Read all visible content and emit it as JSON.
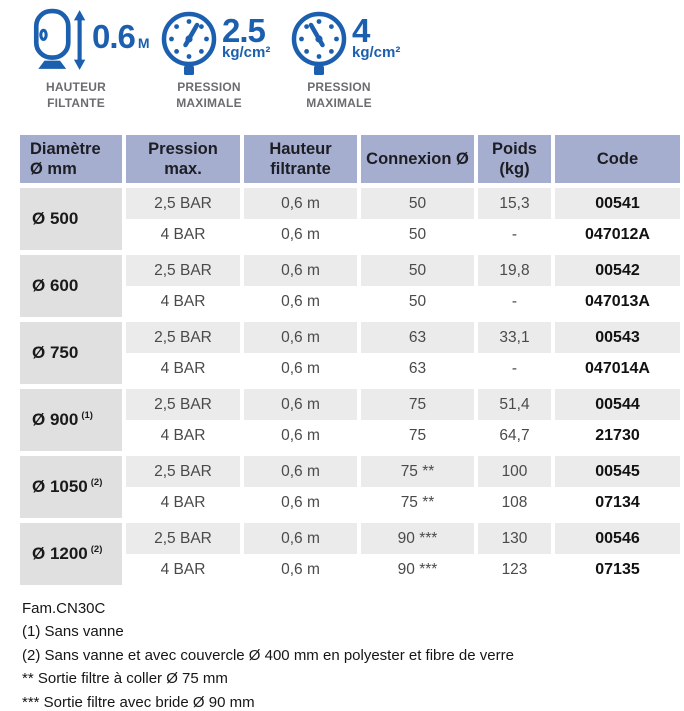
{
  "colors": {
    "accent_blue": "#1b5fae",
    "header_bg": "#a6aed0",
    "row_shade": "#ebebeb",
    "diameter_col_bg": "#e0e0e0",
    "label_gray": "#6b6c6f"
  },
  "icons": {
    "filter_height": {
      "value": "0.6",
      "unit": "M",
      "label": [
        "HAUTEUR",
        "FILTANTE"
      ]
    },
    "pressure_max_25": {
      "value": "2.5",
      "unit": "kg/cm²",
      "label": [
        "PRESSION",
        "MAXIMALE"
      ]
    },
    "pressure_max_4": {
      "value": "4",
      "unit": "kg/cm²",
      "label": [
        "PRESSION",
        "MAXIMALE"
      ]
    }
  },
  "table": {
    "headers": [
      [
        "Diamètre",
        "Ø mm"
      ],
      [
        "Pression",
        "max."
      ],
      [
        "Hauteur",
        "filtrante"
      ],
      [
        "Connexion Ø"
      ],
      [
        "Poids",
        "(kg)"
      ],
      [
        "Code"
      ]
    ],
    "groups": [
      {
        "diameter": "Ø 500",
        "note": "",
        "rows": [
          [
            "2,5 BAR",
            "0,6 m",
            "50",
            "15,3",
            "00541"
          ],
          [
            "4 BAR",
            "0,6 m",
            "50",
            "-",
            "047012A"
          ]
        ]
      },
      {
        "diameter": "Ø 600",
        "note": "",
        "rows": [
          [
            "2,5 BAR",
            "0,6 m",
            "50",
            "19,8",
            "00542"
          ],
          [
            "4 BAR",
            "0,6 m",
            "50",
            "-",
            "047013A"
          ]
        ]
      },
      {
        "diameter": "Ø 750",
        "note": "",
        "rows": [
          [
            "2,5 BAR",
            "0,6 m",
            "63",
            "33,1",
            "00543"
          ],
          [
            "4 BAR",
            "0,6 m",
            "63",
            "-",
            "047014A"
          ]
        ]
      },
      {
        "diameter": "Ø 900",
        "note": "(1)",
        "rows": [
          [
            "2,5 BAR",
            "0,6 m",
            "75",
            "51,4",
            "00544"
          ],
          [
            "4 BAR",
            "0,6 m",
            "75",
            "64,7",
            "21730"
          ]
        ]
      },
      {
        "diameter": "Ø 1050",
        "note": "(2)",
        "rows": [
          [
            "2,5 BAR",
            "0,6 m",
            "75 **",
            "100",
            "00545"
          ],
          [
            "4 BAR",
            "0,6 m",
            "75 **",
            "108",
            "07134"
          ]
        ]
      },
      {
        "diameter": "Ø 1200",
        "note": "(2)",
        "rows": [
          [
            "2,5 BAR",
            "0,6 m",
            "90 ***",
            "130",
            "00546"
          ],
          [
            "4 BAR",
            "0,6 m",
            "90 ***",
            "123",
            "07135"
          ]
        ]
      }
    ]
  },
  "footnotes": [
    "Fam.CN30C",
    "(1) Sans vanne",
    "(2) Sans vanne et avec couvercle Ø 400 mm en polyester et fibre de verre",
    "** Sortie filtre à coller Ø 75 mm",
    "*** Sortie filtre avec bride Ø 90 mm"
  ]
}
